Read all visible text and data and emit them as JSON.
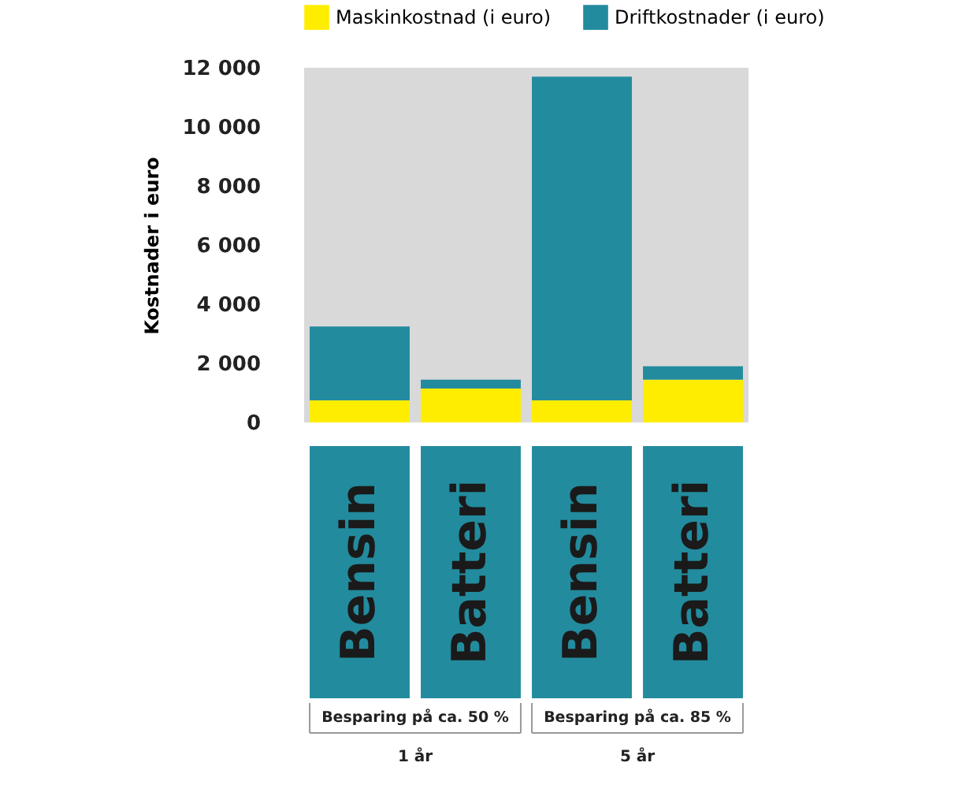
{
  "chart_data": {
    "type": "bar",
    "stacked": true,
    "ylabel": "Kostnader i euro",
    "legend": "top",
    "categories": [
      "Bensin",
      "Batteri",
      "Bensin",
      "Batteri"
    ],
    "series": [
      {
        "name": "Maskinkostnad (i euro)",
        "color": "#ffed00",
        "values": [
          750,
          1150,
          750,
          1450
        ]
      },
      {
        "name": "Driftkostnader (i euro)",
        "color": "#238b9e",
        "values": [
          2500,
          300,
          10950,
          450
        ]
      }
    ],
    "ylim": [
      0,
      12000
    ],
    "yticks": [
      0,
      {
        "value": 2000,
        "label": "2 000"
      },
      {
        "value": 4000,
        "label": "4 000"
      },
      {
        "value": 6000,
        "label": "6 000"
      },
      {
        "value": 8000,
        "label": "8 000"
      },
      {
        "value": 10000,
        "label": "10 000"
      },
      {
        "value": 12000,
        "label": "12 000"
      }
    ],
    "grid": false,
    "annotations": [
      "Besparing på ca. 50 %",
      "Besparing på ca. 85 %",
      "1 år",
      "5 år"
    ]
  }
}
